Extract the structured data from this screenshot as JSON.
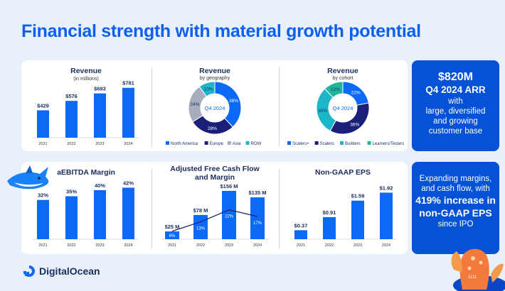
{
  "page_title": "Financial strength with material growth potential",
  "brand": {
    "name": "DigitalOcean"
  },
  "colors": {
    "primary": "#0d5ff2",
    "bar": "#0b69f5",
    "navy": "#1a1f7a",
    "gray": "#a7adbf",
    "teal": "#1cb6c8",
    "side_bg": "#0552d6"
  },
  "side_top": {
    "line1": "$820M",
    "line2": "Q4 2024 ARR",
    "line3": "with",
    "line4": "large, diversified",
    "line5": "and growing",
    "line6": "customer base"
  },
  "side_bottom": {
    "line1": "Expanding margins,",
    "line2": "and cash flow, with",
    "line3": "419% increase in",
    "line4": "non-GAAP EPS",
    "line5": "since IPO"
  },
  "mascot_badge": "1111",
  "chart_data": [
    {
      "type": "bar",
      "title": "Revenue",
      "subtitle": "(in millions)",
      "categories": [
        "2021",
        "2022",
        "2023",
        "2024"
      ],
      "values": [
        429,
        576,
        693,
        781
      ],
      "labels": [
        "$429",
        "$576",
        "$693",
        "$781"
      ],
      "ylim": [
        0,
        800
      ]
    },
    {
      "type": "pie",
      "title": "Revenue",
      "subtitle": "by geography",
      "center_label": "Q4 2024",
      "slices": [
        {
          "name": "North America",
          "value": 38,
          "label": "38%",
          "color": "#0b69f5"
        },
        {
          "name": "Europe",
          "value": 28,
          "label": "28%",
          "color": "#1a1f7a"
        },
        {
          "name": "Asia",
          "value": 24,
          "label": "24%",
          "color": "#a7adbf"
        },
        {
          "name": "ROW",
          "value": 10,
          "label": "10%",
          "color": "#1cb6c8"
        }
      ]
    },
    {
      "type": "pie",
      "title": "Revenue",
      "subtitle": "by cohort",
      "center_label": "Q4 2024",
      "slices": [
        {
          "name": "Scalers+",
          "value": 22,
          "label": "22%",
          "color": "#0b69f5"
        },
        {
          "name": "Scalers",
          "value": 36,
          "label": "36%",
          "color": "#1a1f7a"
        },
        {
          "name": "Builders",
          "value": 30,
          "label": "30%",
          "color": "#1cb6c8"
        },
        {
          "name": "Learners/Testers",
          "value": 12,
          "label": "12%",
          "color": "#1fb59a"
        }
      ]
    },
    {
      "type": "bar",
      "title": "aEBITDA Margin",
      "categories": [
        "2021",
        "2022",
        "2023",
        "2024"
      ],
      "values": [
        32,
        35,
        40,
        42
      ],
      "labels": [
        "32%",
        "35%",
        "40%",
        "42%"
      ],
      "ylim": [
        0,
        70
      ]
    },
    {
      "type": "bar",
      "title": "Adjusted Free Cash Flow",
      "title2": "and Margin",
      "categories": [
        "2021",
        "2022",
        "2023",
        "2024"
      ],
      "values": [
        25,
        78,
        156,
        135
      ],
      "labels": [
        "$25 M",
        "$78 M",
        "$156 M",
        "$135 M"
      ],
      "margin_series": {
        "name": "Margin",
        "values": [
          6,
          13,
          22,
          17
        ],
        "labels": [
          "6%",
          "13%",
          "22%",
          "17%"
        ]
      },
      "ylim": [
        0,
        165
      ]
    },
    {
      "type": "bar",
      "title": "Non-GAAP EPS",
      "categories": [
        "2021",
        "2022",
        "2023",
        "2024"
      ],
      "values": [
        0.37,
        0.91,
        1.59,
        1.92
      ],
      "labels": [
        "$0.37",
        "$0.91",
        "$1.59",
        "$1.92"
      ],
      "ylim": [
        0,
        2.05
      ]
    }
  ]
}
